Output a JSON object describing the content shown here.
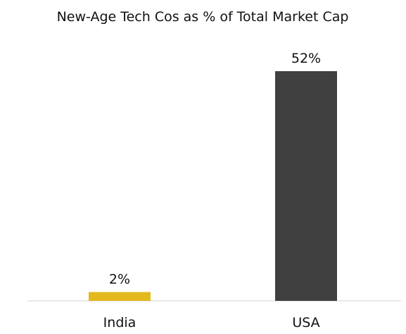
{
  "chart_data": {
    "type": "bar",
    "title": "New-Age Tech Cos as % of Total Market Cap",
    "categories": [
      "India",
      "USA"
    ],
    "values": [
      2,
      52
    ],
    "data_labels": [
      "2%",
      "52%"
    ],
    "colors": [
      "#E3B91E",
      "#404040"
    ],
    "ylim": [
      0,
      52
    ],
    "grid": false,
    "legend": "none",
    "xlabel": "",
    "ylabel": ""
  }
}
